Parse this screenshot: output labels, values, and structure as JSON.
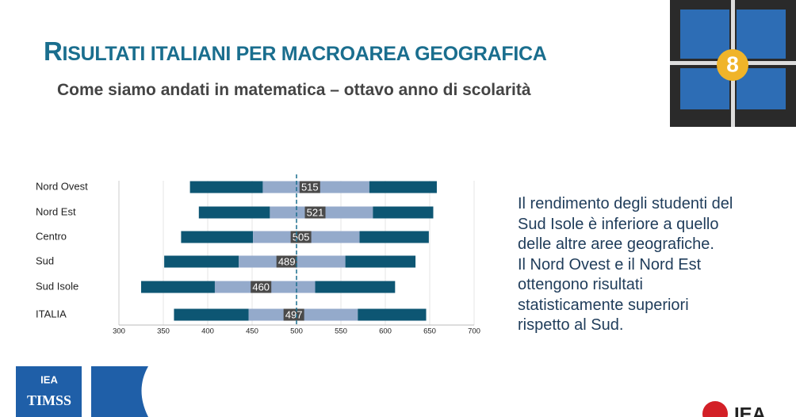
{
  "slide": {
    "title": "RISULTATI ITALIANI PER MACROAREA GEOGRAFICA",
    "subtitle": "Come siamo andati in matematica – ottavo anno di scolarità",
    "text": [
      "Il rendimento degli studenti del",
      "Sud Isole è inferiore a quello",
      "delle altre aree geografiche.",
      "Il Nord Ovest e il Nord Est",
      "ottengono risultati",
      "statisticamente superiori",
      "rispetto al Sud."
    ],
    "badge": "8",
    "logo_left_top": "IEA",
    "logo_left_bottom": "TIMSS",
    "logo_right": "IEA"
  },
  "chart_data": {
    "type": "percentile-bar",
    "categories": [
      "Nord Ovest",
      "Nord Est",
      "Centro",
      "Sud",
      "Sud Isole",
      "ITALIA"
    ],
    "p5": [
      380,
      390,
      370,
      351,
      325,
      362
    ],
    "p25": [
      462,
      470,
      451,
      435,
      408,
      446
    ],
    "values": [
      515,
      521,
      505,
      489,
      460,
      497
    ],
    "p75": [
      582,
      586,
      571,
      555,
      521,
      569
    ],
    "p95": [
      658,
      654,
      649,
      634,
      611,
      646
    ],
    "outer_color": "#0d5673",
    "inner_color": "#94aacb",
    "mean_color": "#4a4a4a",
    "reference_line": 500,
    "xlim": [
      300,
      700
    ],
    "xticks": [
      300,
      350,
      400,
      450,
      500,
      550,
      600,
      650,
      700
    ],
    "grid": true
  }
}
